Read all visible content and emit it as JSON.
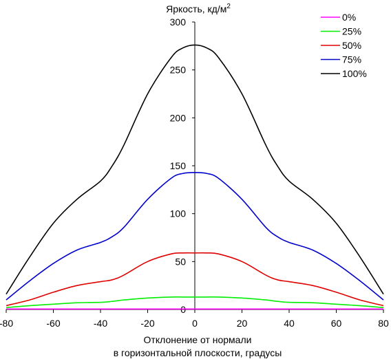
{
  "chart_data": {
    "type": "line",
    "title": "Яркость, кд/м²",
    "title_main": "Яркость, кд/м",
    "title_sup": "2",
    "xlabel_line1": "Отклонение от нормали",
    "xlabel_line2": "в горизонтальной плоскости, градусы",
    "xlabel": "Отклонение от нормали в горизонтальной плоскости, градусы",
    "ylabel": "Яркость, кд/м²",
    "xlim": [
      -80,
      80
    ],
    "ylim": [
      0,
      300
    ],
    "x_ticks": [
      "-80",
      "-60",
      "-40",
      "-20",
      "0",
      "20",
      "40",
      "60",
      "80"
    ],
    "y_ticks": [
      "0",
      "50",
      "100",
      "150",
      "200",
      "250",
      "300"
    ],
    "grid": false,
    "legend_position": "top-right",
    "x": [
      -80,
      -70,
      -60,
      -50,
      -40,
      -35,
      -30,
      -20,
      -10,
      -5,
      0,
      5,
      10,
      20,
      30,
      35,
      40,
      50,
      60,
      70,
      80
    ],
    "series": [
      {
        "name": "0%",
        "color": "#ff00ff",
        "values": [
          0.5,
          0.5,
          0.5,
          0.5,
          0.5,
          0.5,
          0.5,
          0.5,
          0.5,
          0.5,
          0.5,
          0.5,
          0.5,
          0.5,
          0.5,
          0.5,
          0.5,
          0.5,
          0.5,
          0.5,
          0.5
        ]
      },
      {
        "name": "25%",
        "color": "#00ee00",
        "values": [
          2,
          4,
          5.5,
          7,
          7.5,
          8.5,
          10,
          12,
          13,
          13,
          13,
          13,
          13,
          12,
          10,
          8.5,
          7.5,
          7,
          5.5,
          4,
          2
        ]
      },
      {
        "name": "50%",
        "color": "#e00000",
        "values": [
          4,
          10,
          18,
          25,
          29,
          31,
          36,
          50,
          58,
          59,
          59,
          59,
          58,
          50,
          36,
          31,
          29,
          25,
          18,
          10,
          4
        ]
      },
      {
        "name": "75%",
        "color": "#0000cc",
        "values": [
          10,
          30,
          48,
          62,
          70,
          76,
          86,
          115,
          137,
          142,
          143,
          142,
          137,
          115,
          86,
          76,
          70,
          62,
          48,
          30,
          10
        ]
      },
      {
        "name": "100%",
        "color": "#000000",
        "values": [
          16,
          55,
          90,
          115,
          134,
          150,
          172,
          225,
          263,
          273,
          276,
          273,
          263,
          225,
          172,
          150,
          134,
          115,
          90,
          55,
          16
        ]
      }
    ]
  }
}
